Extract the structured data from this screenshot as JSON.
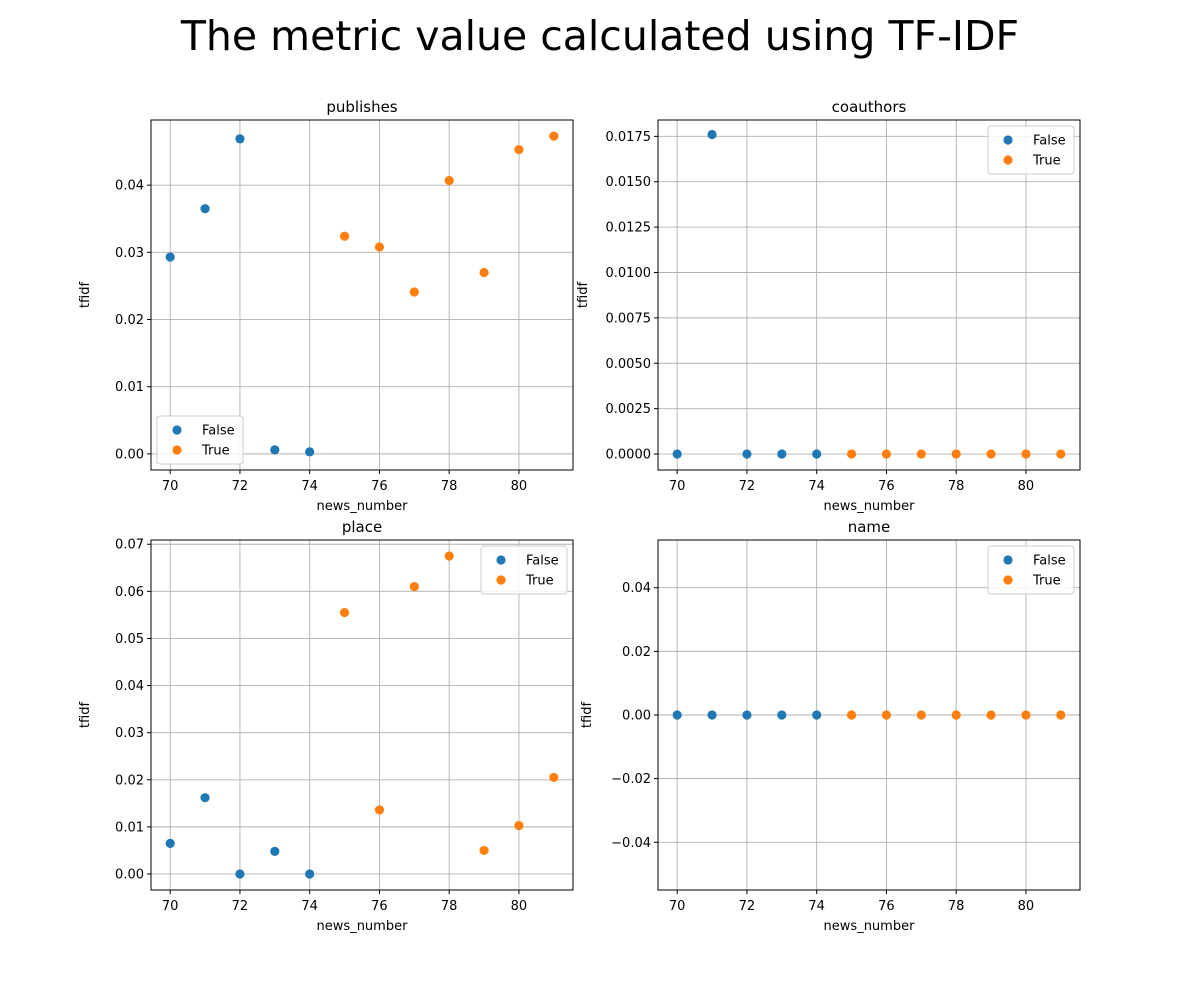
{
  "figure": {
    "title": "The metric value calculated using TF-IDF"
  },
  "colors": {
    "False": "#1f77b4",
    "True": "#ff7f0e",
    "grid": "#b0b0b0"
  },
  "chart_data": [
    {
      "type": "scatter",
      "title": "publishes",
      "xlabel": "news_number",
      "ylabel": "tfidf",
      "xlim": [
        69.45,
        81.55
      ],
      "ylim": [
        -0.0024,
        0.0497
      ],
      "xticks": [
        70,
        72,
        74,
        76,
        78,
        80
      ],
      "xtick_labels": [
        "70",
        "72",
        "74",
        "76",
        "78",
        "80"
      ],
      "yticks": [
        0.0,
        0.01,
        0.02,
        0.03,
        0.04
      ],
      "ytick_labels": [
        "0.00",
        "0.01",
        "0.02",
        "0.03",
        "0.04"
      ],
      "grid": true,
      "legend": "lower left",
      "series": [
        {
          "name": "False",
          "x": [
            70,
            71,
            72,
            73,
            74
          ],
          "y": [
            0.0293,
            0.0365,
            0.0469,
            0.0006,
            0.0003
          ]
        },
        {
          "name": "True",
          "x": [
            75,
            76,
            77,
            78,
            79,
            80,
            81
          ],
          "y": [
            0.0324,
            0.0308,
            0.0241,
            0.0407,
            0.027,
            0.0453,
            0.0473
          ]
        }
      ]
    },
    {
      "type": "scatter",
      "title": "coauthors",
      "xlabel": "news_number",
      "ylabel": "tfidf",
      "xlim": [
        69.45,
        81.55
      ],
      "ylim": [
        -0.00088,
        0.0184
      ],
      "xticks": [
        70,
        72,
        74,
        76,
        78,
        80
      ],
      "xtick_labels": [
        "70",
        "72",
        "74",
        "76",
        "78",
        "80"
      ],
      "yticks": [
        0.0,
        0.0025,
        0.005,
        0.0075,
        0.01,
        0.0125,
        0.015,
        0.0175
      ],
      "ytick_labels": [
        "0.0000",
        "0.0025",
        "0.0050",
        "0.0075",
        "0.0100",
        "0.0125",
        "0.0150",
        "0.0175"
      ],
      "grid": true,
      "legend": "upper right",
      "series": [
        {
          "name": "False",
          "x": [
            70,
            71,
            72,
            73,
            74
          ],
          "y": [
            0.0,
            0.0176,
            0.0,
            0.0,
            0.0
          ]
        },
        {
          "name": "True",
          "x": [
            75,
            76,
            77,
            78,
            79,
            80,
            81
          ],
          "y": [
            0.0,
            0.0,
            0.0,
            0.0,
            0.0,
            0.0,
            0.0
          ]
        }
      ]
    },
    {
      "type": "scatter",
      "title": "place",
      "xlabel": "news_number",
      "ylabel": "tfidf",
      "xlim": [
        69.45,
        81.55
      ],
      "ylim": [
        -0.0034,
        0.0709
      ],
      "xticks": [
        70,
        72,
        74,
        76,
        78,
        80
      ],
      "xtick_labels": [
        "70",
        "72",
        "74",
        "76",
        "78",
        "80"
      ],
      "yticks": [
        0.0,
        0.01,
        0.02,
        0.03,
        0.04,
        0.05,
        0.06,
        0.07
      ],
      "ytick_labels": [
        "0.00",
        "0.01",
        "0.02",
        "0.03",
        "0.04",
        "0.05",
        "0.06",
        "0.07"
      ],
      "grid": true,
      "legend": "upper right",
      "series": [
        {
          "name": "False",
          "x": [
            70,
            71,
            72,
            73,
            74
          ],
          "y": [
            0.0065,
            0.0162,
            0.0,
            0.0048,
            0.0
          ]
        },
        {
          "name": "True",
          "x": [
            75,
            76,
            77,
            78,
            79,
            80,
            81
          ],
          "y": [
            0.0555,
            0.0136,
            0.061,
            0.0675,
            0.005,
            0.0103,
            0.0205
          ]
        }
      ]
    },
    {
      "type": "scatter",
      "title": "name",
      "xlabel": "news_number",
      "ylabel": "tfidf",
      "xlim": [
        69.45,
        81.55
      ],
      "ylim": [
        -0.055,
        0.055
      ],
      "xticks": [
        70,
        72,
        74,
        76,
        78,
        80
      ],
      "xtick_labels": [
        "70",
        "72",
        "74",
        "76",
        "78",
        "80"
      ],
      "yticks": [
        -0.04,
        -0.02,
        0.0,
        0.02,
        0.04
      ],
      "ytick_labels": [
        "−0.04",
        "−0.02",
        "0.00",
        "0.02",
        "0.04"
      ],
      "grid": true,
      "legend": "upper right",
      "series": [
        {
          "name": "False",
          "x": [
            70,
            71,
            72,
            73,
            74
          ],
          "y": [
            0.0,
            0.0,
            0.0,
            0.0,
            0.0
          ]
        },
        {
          "name": "True",
          "x": [
            75,
            76,
            77,
            78,
            79,
            80,
            81
          ],
          "y": [
            0.0,
            0.0,
            0.0,
            0.0,
            0.0,
            0.0,
            0.0
          ]
        }
      ]
    }
  ]
}
